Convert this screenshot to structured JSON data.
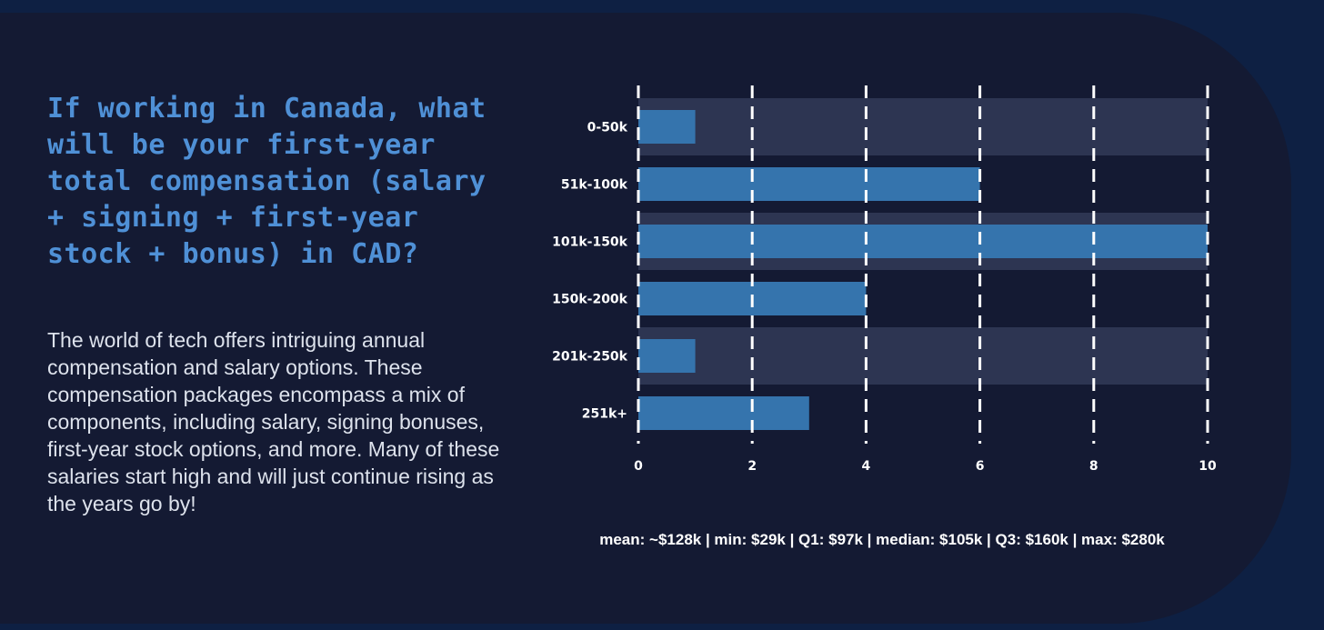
{
  "page": {
    "title": "If working in Canada, what will be your first-year total compensation (salary + signing + first-year stock + bonus) in CAD?",
    "description": "The world of tech offers intriguing annual compensation and salary options. These compensation packages encompass a mix of components, including salary, signing bonuses, first-year stock options, and more. Many of these salaries start high and will just continue rising as the years go by!",
    "stats": "mean: ~$128k | min: $29k | Q1: $97k | median: $105k | Q3: $160k | max: $280k"
  },
  "colors": {
    "bar": "#3574ad",
    "band": "#2d3552",
    "grid": "#ffffff",
    "label": "#ffffff"
  },
  "chart_data": {
    "type": "bar",
    "orientation": "horizontal",
    "categories": [
      "0-50k",
      "51k-100k",
      "101k-150k",
      "150k-200k",
      "201k-250k",
      "251k+"
    ],
    "values": [
      1,
      6,
      10,
      4,
      1,
      3
    ],
    "xlim": [
      0,
      10
    ],
    "xticks": [
      0,
      2,
      4,
      6,
      8,
      10
    ],
    "grid": "vertical-dashed",
    "title": "",
    "xlabel": "",
    "ylabel": ""
  }
}
